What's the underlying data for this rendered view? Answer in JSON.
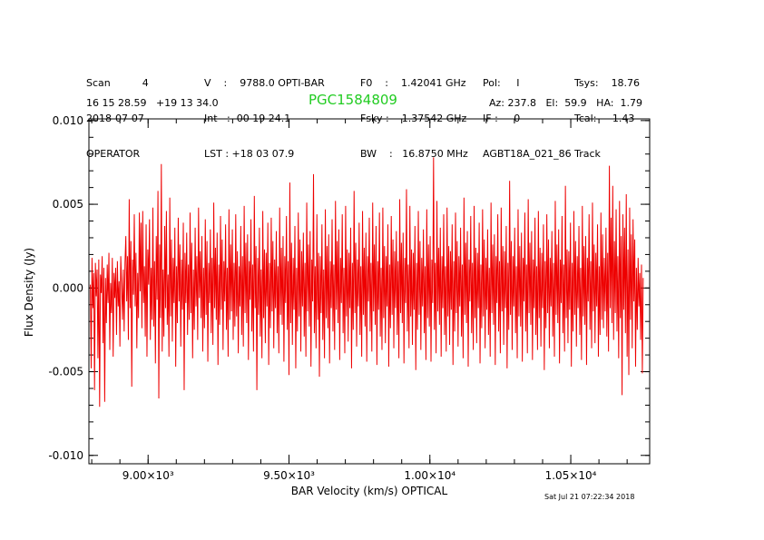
{
  "header": {
    "col1": [
      "Scan          4",
      "2018-07-07",
      "OPERATOR"
    ],
    "col2": [
      "V    :    9788.0 OPTI-BAR",
      "Int   :  00 19 24.1",
      "LST : +18 03 07.9"
    ],
    "col3": [
      "F0    :    1.42041 GHz",
      "Fsky :    1.37542 GHz",
      "BW    :   16.8750 MHz"
    ],
    "col4": [
      "Pol:     I",
      "IF :     0",
      "AGBT18A_021_86 Track"
    ],
    "col5": [
      "Tsys:    18.76",
      "Tcal:     1.43"
    ],
    "coords": "16 15 28.59   +19 13 34.0",
    "azel": "Az: 237.8   El:  59.9   HA:  1.79",
    "timestamp": "Sat Jul 21 07:22:34 2018"
  },
  "chart_data": {
    "type": "line",
    "title": "PGC1584809",
    "xlabel": "BAR Velocity (km/s) OPTICAL",
    "ylabel": "Flux Density (Jy)",
    "xlim": [
      8790,
      10780
    ],
    "ylim": [
      -0.0105,
      0.0101
    ],
    "xticks": [
      {
        "value": 9000,
        "label": "9.00×10³"
      },
      {
        "value": 9500,
        "label": "9.50×10³"
      },
      {
        "value": 10000,
        "label": "1.00×10⁴"
      },
      {
        "value": 10500,
        "label": "1.05×10⁴"
      }
    ],
    "yticks": [
      {
        "value": 0.01,
        "label": "0.010"
      },
      {
        "value": 0.005,
        "label": "0.005"
      },
      {
        "value": 0.0,
        "label": "0.000"
      },
      {
        "value": -0.005,
        "label": "-0.005"
      },
      {
        "value": -0.01,
        "label": "-0.010"
      }
    ],
    "line_color": "#ee0000",
    "title_color": "#22cc22",
    "series": [
      {
        "x_start": 8795,
        "x_step": 3.0,
        "values": [
          0.0002,
          -0.0048,
          0.0018,
          -0.0012,
          0.0009,
          -0.0061,
          0.0015,
          -0.0005,
          0.0011,
          -0.0042,
          0.0017,
          -0.0071,
          0.0008,
          -0.0003,
          0.0019,
          -0.0033,
          0.0012,
          -0.0068,
          0.0006,
          -0.0021,
          0.0014,
          -0.0009,
          0.0021,
          -0.0037,
          0.0003,
          -0.0015,
          0.0018,
          -0.0041,
          0.0009,
          -0.0006,
          0.0012,
          -0.0028,
          0.0016,
          -0.0011,
          0.0004,
          -0.0035,
          0.0019,
          0.0002,
          -0.0019,
          0.0011,
          -0.0026,
          0.0015,
          0.0031,
          -0.0008,
          0.0019,
          -0.0031,
          0.0053,
          -0.0012,
          0.0028,
          -0.0059,
          0.0017,
          -0.0004,
          0.0044,
          -0.0011,
          0.0021,
          -0.0036,
          0.0009,
          -0.0018,
          0.0045,
          -0.0002,
          0.0039,
          -0.0024,
          0.0046,
          -0.0009,
          0.0013,
          -0.0029,
          0.0038,
          -0.0041,
          0.0023,
          0.0002,
          0.0041,
          -0.0031,
          0.0012,
          -0.0019,
          0.0048,
          -0.0023,
          0.0016,
          -0.0045,
          0.0031,
          -0.0007,
          0.0058,
          -0.0066,
          0.0026,
          -0.0018,
          0.0074,
          -0.0038,
          0.0011,
          -0.0029,
          0.0037,
          -0.0012,
          0.0046,
          -0.0022,
          0.0008,
          -0.0041,
          0.0054,
          -0.0017,
          0.0029,
          -0.0032,
          0.0018,
          -0.0009,
          0.0036,
          -0.0047,
          0.0013,
          -0.0021,
          0.0042,
          -0.0008,
          0.0026,
          -0.0035,
          0.0017,
          -0.0013,
          0.0039,
          -0.0061,
          0.0021,
          -0.0009,
          0.0033,
          -0.0028,
          0.0014,
          -0.0019,
          0.0045,
          -0.0015,
          0.0027,
          -0.0042,
          0.0011,
          -0.0025,
          0.0036,
          -0.0011,
          0.0019,
          -0.0031,
          0.0048,
          -0.0006,
          0.0022,
          -0.0018,
          0.0031,
          -0.0038,
          0.0012,
          -0.0024,
          0.0041,
          -0.0016,
          0.0028,
          -0.0044,
          0.0015,
          -0.0009,
          0.0035,
          -0.0027,
          0.0018,
          -0.0034,
          0.0051,
          -0.0012,
          0.0024,
          -0.0019,
          0.0033,
          -0.0046,
          0.0014,
          -0.0022,
          0.0043,
          -0.0013,
          0.0029,
          -0.0037,
          0.0016,
          -0.0008,
          0.0038,
          -0.0025,
          0.0012,
          -0.0041,
          0.0047,
          -0.0019,
          0.0026,
          -0.0014,
          0.0035,
          -0.0031,
          0.0015,
          -0.0023,
          0.0044,
          -0.0017,
          0.0022,
          -0.0039,
          0.0013,
          -0.0011,
          0.0037,
          -0.0028,
          0.0019,
          -0.0035,
          0.0049,
          -0.0015,
          0.0027,
          -0.0021,
          0.0032,
          -0.0043,
          0.0016,
          -0.0007,
          0.0041,
          -0.0026,
          0.0014,
          -0.0038,
          0.0055,
          -0.0012,
          0.0025,
          -0.0061,
          0.0018,
          -0.0016,
          0.0036,
          -0.0029,
          0.0011,
          -0.0042,
          0.0046,
          -0.0018,
          0.0023,
          -0.0033,
          0.0021,
          -0.0011,
          0.0039,
          -0.0046,
          0.0015,
          -0.0024,
          0.0042,
          -0.0014,
          0.0028,
          -0.0036,
          0.0017,
          -0.0012,
          0.0034,
          -0.0027,
          0.0013,
          -0.0039,
          0.0048,
          -0.0016,
          0.0024,
          -0.0022,
          0.0031,
          -0.0044,
          0.0019,
          -0.0009,
          0.0043,
          -0.0025,
          0.0016,
          -0.0052,
          0.0063,
          -0.0021,
          0.0027,
          -0.0034,
          0.0018,
          -0.0013,
          0.0037,
          -0.0048,
          0.0012,
          -0.0026,
          0.0045,
          -0.0017,
          0.0029,
          -0.0038,
          0.0022,
          -0.0011,
          0.0033,
          -0.0029,
          0.0015,
          -0.0041,
          0.0051,
          -0.0014,
          0.0026,
          -0.0023,
          0.0034,
          -0.0047,
          0.0017,
          -0.0008,
          0.0068,
          -0.0027,
          0.0013,
          -0.0036,
          0.0044,
          -0.0019,
          0.0021,
          -0.0053,
          0.0019,
          -0.0015,
          0.0038,
          -0.0031,
          0.0011,
          -0.0042,
          0.0047,
          -0.0018,
          0.0025,
          -0.0024,
          0.0032,
          -0.0045,
          0.0016,
          -0.0012,
          0.0041,
          -0.0026,
          0.0014,
          -0.0037,
          0.0052,
          -0.0013,
          0.0028,
          -0.0021,
          0.0035,
          -0.0043,
          0.0018,
          -0.0009,
          0.0044,
          -0.0027,
          0.0012,
          -0.0039,
          0.0049,
          -0.0017,
          0.0023,
          -0.0032,
          0.0021,
          -0.0012,
          0.0036,
          -0.0048,
          0.0015,
          -0.0025,
          0.0058,
          -0.0015,
          0.0027,
          -0.0035,
          0.0017,
          -0.0011,
          0.0039,
          -0.0028,
          0.0013,
          -0.0041,
          0.0046,
          -0.0016,
          0.0024,
          -0.0023,
          0.0033,
          -0.0044,
          0.0019,
          -0.0008,
          0.0042,
          -0.0026,
          0.0015,
          -0.0038,
          0.0051,
          -0.0014,
          0.0026,
          -0.0022,
          0.0037,
          -0.0046,
          0.0016,
          -0.0013,
          0.0045,
          -0.0029,
          0.0012,
          -0.0037,
          0.0048,
          -0.0018,
          0.0025,
          -0.0033,
          0.0019,
          -0.0011,
          0.0038,
          -0.0047,
          0.0014,
          -0.0024,
          0.0043,
          -0.0016,
          0.0029,
          -0.0036,
          0.0022,
          -0.0012,
          0.0034,
          -0.0028,
          0.0016,
          -0.0042,
          0.0053,
          -0.0015,
          0.0027,
          -0.0021,
          0.0033,
          -0.0045,
          0.0018,
          -0.0009,
          0.0059,
          -0.0026,
          0.0014,
          -0.0036,
          0.0049,
          -0.0017,
          0.0023,
          -0.0034,
          0.0021,
          -0.0013,
          0.0037,
          -0.0049,
          0.0015,
          -0.0025,
          0.0046,
          -0.0016,
          0.0028,
          -0.0037,
          0.0018,
          -0.0011,
          0.0035,
          -0.0027,
          0.0013,
          -0.0043,
          0.0047,
          -0.0018,
          0.0026,
          -0.0023,
          0.0031,
          -0.0044,
          0.0017,
          -0.0009,
          0.0078,
          -0.0025,
          0.0015,
          -0.0039,
          0.0052,
          -0.0014,
          0.0024,
          -0.0022,
          0.0036,
          -0.0041,
          0.0019,
          -0.0012,
          0.0044,
          -0.0028,
          0.0013,
          -0.0038,
          0.0048,
          -0.0017,
          0.0025,
          -0.0034,
          0.0022,
          -0.0013,
          0.0038,
          -0.0046,
          0.0016,
          -0.0026,
          0.0045,
          -0.0015,
          0.0028,
          -0.0035,
          0.0019,
          -0.0011,
          0.0036,
          -0.0029,
          0.0014,
          -0.0042,
          0.0054,
          -0.0016,
          0.0027,
          -0.0021,
          0.0034,
          -0.0047,
          0.0017,
          -0.0008,
          0.0043,
          -0.0027,
          0.0015,
          -0.0037,
          0.0049,
          -0.0018,
          0.0024,
          -0.0033,
          0.0021,
          -0.0012,
          0.0039,
          -0.0045,
          0.0014,
          -0.0024,
          0.0047,
          -0.0017,
          0.0029,
          -0.0036,
          0.0018,
          -0.0013,
          0.0035,
          -0.0028,
          0.0012,
          -0.0041,
          0.0051,
          -0.0015,
          0.0026,
          -0.0022,
          0.0032,
          -0.0046,
          0.0019,
          -0.0009,
          0.0044,
          -0.0026,
          0.0016,
          -0.0039,
          0.0048,
          -0.0014,
          0.0025,
          -0.0034,
          0.0022,
          -0.0012,
          0.0037,
          -0.0048,
          0.0015,
          -0.0025,
          0.0064,
          -0.0016,
          0.0028,
          -0.0037,
          0.0019,
          -0.0011,
          0.0036,
          -0.0027,
          0.0013,
          -0.0042,
          0.0047,
          -0.0017,
          0.0025,
          -0.0023,
          0.0033,
          -0.0044,
          0.0018,
          -0.0008,
          0.0045,
          -0.0026,
          0.0014,
          -0.0039,
          0.0053,
          -0.0015,
          0.0027,
          -0.0022,
          0.0034,
          -0.0043,
          0.0017,
          -0.0012,
          0.0042,
          -0.0028,
          0.0013,
          -0.0037,
          0.0046,
          -0.0018,
          0.0024,
          -0.0035,
          0.0021,
          -0.0012,
          0.0038,
          -0.0049,
          0.0016,
          -0.0024,
          0.0044,
          -0.0015,
          0.0029,
          -0.0036,
          0.0018,
          -0.0011,
          0.0034,
          -0.0029,
          0.0015,
          -0.0041,
          0.0052,
          -0.0016,
          0.0026,
          -0.0021,
          0.0035,
          -0.0045,
          0.0017,
          -0.0009,
          0.0043,
          -0.0027,
          0.0014,
          -0.0038,
          0.0061,
          -0.0018,
          0.0023,
          -0.0033,
          0.0022,
          -0.0013,
          0.0039,
          -0.0047,
          0.0015,
          -0.0026,
          0.0046,
          -0.0016,
          0.0028,
          -0.0035,
          0.0019,
          -0.0012,
          0.0037,
          -0.0028,
          0.0012,
          -0.0043,
          0.0049,
          -0.0017,
          0.0025,
          -0.0022,
          0.0031,
          -0.0046,
          0.0018,
          -0.0008,
          0.0044,
          -0.0025,
          0.0016,
          -0.0036,
          0.0051,
          -0.0014,
          0.0026,
          -0.0033,
          0.0021,
          -0.0011,
          0.0038,
          -0.0041,
          0.0013,
          -0.0028,
          0.0045,
          -0.0019,
          0.0032,
          -0.0024,
          0.0018,
          -0.0014,
          0.0036,
          -0.0029,
          0.0021,
          -0.0038,
          0.0073,
          -0.0012,
          0.0042,
          -0.0021,
          0.0061,
          -0.0031,
          0.0028,
          -0.0015,
          0.0047,
          -0.0026,
          0.0019,
          -0.0042,
          0.0052,
          -0.0018,
          0.0031,
          -0.0064,
          0.0044,
          -0.0013,
          0.0036,
          -0.0027,
          0.0056,
          -0.0041,
          0.0023,
          -0.0052,
          0.0048,
          -0.0019,
          0.0032,
          -0.0036,
          0.0041,
          -0.0008,
          0.0029,
          -0.0047,
          0.0012,
          -0.0025,
          0.0018,
          -0.0011,
          0.0009,
          -0.0031,
          0.0014,
          -0.0051,
          0.0006
        ]
      }
    ]
  }
}
